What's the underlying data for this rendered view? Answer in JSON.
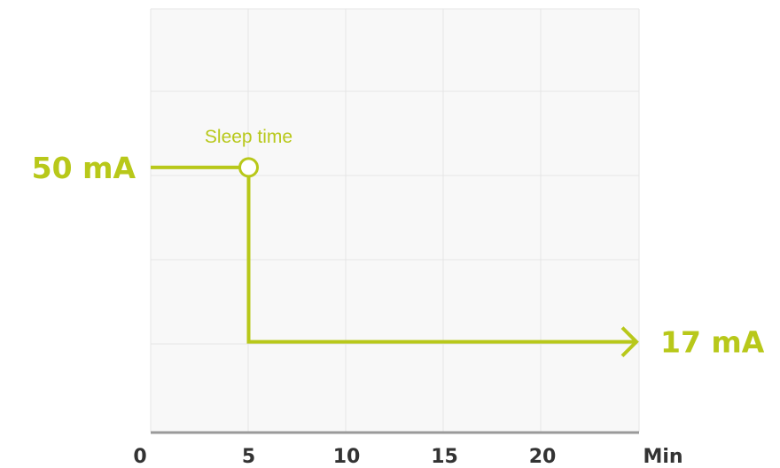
{
  "chart_data": {
    "type": "line",
    "title": "",
    "xlabel": "",
    "ylabel": "",
    "x_unit_label": "Min",
    "xlim": [
      0,
      25
    ],
    "xticks": [
      0,
      5,
      10,
      15,
      20
    ],
    "xtick_labels": [
      "0",
      "5",
      "10",
      "15",
      "20"
    ],
    "ylim": [
      0,
      80
    ],
    "grid": true,
    "accent_color": "#b8c81a",
    "series": [
      {
        "x": [
          0,
          5,
          5,
          25
        ],
        "y": [
          50,
          50,
          17,
          17
        ],
        "step": true,
        "end_arrow": true
      }
    ],
    "labels": {
      "start_value": "50 mA",
      "end_value": "17 mA"
    },
    "annotations": [
      {
        "text": "Sleep time",
        "x": 5,
        "y": 50,
        "marker": "open-circle"
      }
    ]
  }
}
